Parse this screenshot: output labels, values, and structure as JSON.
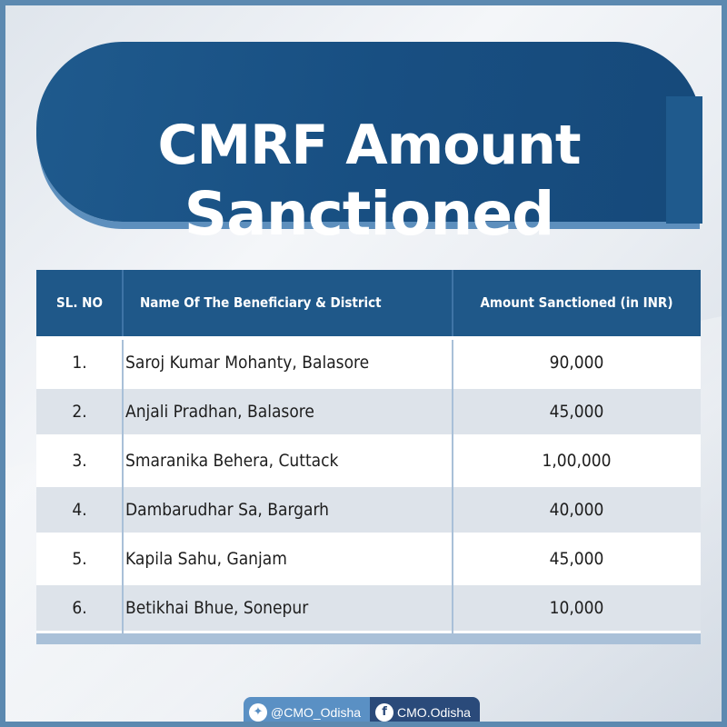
{
  "title": {
    "line1": "CMRF Amount",
    "line2": "Sanctioned"
  },
  "table": {
    "headers": [
      "SL. NO",
      "Name Of The Beneficiary & District",
      "Amount Sanctioned (in INR)"
    ],
    "rows": [
      {
        "sl": "1.",
        "name": "Saroj Kumar Mohanty, Balasore",
        "amount": "90,000"
      },
      {
        "sl": "2.",
        "name": "Anjali Pradhan, Balasore",
        "amount": "45,000"
      },
      {
        "sl": "3.",
        "name": "Smaranika Behera, Cuttack",
        "amount": "1,00,000"
      },
      {
        "sl": "4.",
        "name": "Dambarudhar Sa, Bargarh",
        "amount": "40,000"
      },
      {
        "sl": "5.",
        "name": "Kapila Sahu, Ganjam",
        "amount": "45,000"
      },
      {
        "sl": "6.",
        "name": "Betikhai Bhue, Sonepur",
        "amount": "10,000"
      }
    ]
  },
  "social": {
    "twitter_icon": "twitter-bird-icon",
    "twitter_handle": "@CMO_Odisha",
    "facebook_icon": "facebook-icon",
    "facebook_handle": "CMO.Odisha"
  },
  "colors": {
    "banner": "#1f5a8d",
    "header": "#1f5889",
    "border": "#5c89b0"
  }
}
